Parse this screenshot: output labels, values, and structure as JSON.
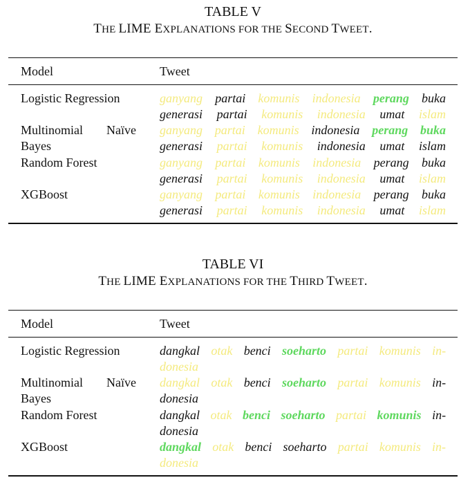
{
  "tables": [
    {
      "label": "TABLE V",
      "caption_parts": [
        {
          "t": "T",
          "sc": false
        },
        {
          "t": "HE ",
          "sc": true
        },
        {
          "t": "LIME E",
          "sc": false
        },
        {
          "t": "XPLANATIONS FOR THE ",
          "sc": true
        },
        {
          "t": "S",
          "sc": false
        },
        {
          "t": "ECOND ",
          "sc": true
        },
        {
          "t": "T",
          "sc": false
        },
        {
          "t": "WEET",
          "sc": true
        },
        {
          "t": ".",
          "sc": false
        }
      ],
      "headers": {
        "model": "Model",
        "tweet": "Tweet"
      },
      "rows": [
        {
          "model": "Logistic Regression",
          "words": [
            [
              "ganyang",
              "y"
            ],
            [
              "partai",
              "n"
            ],
            [
              "komunis",
              "y"
            ],
            [
              "indonesia",
              "y"
            ],
            [
              "perang",
              "g"
            ],
            [
              "buka",
              "n"
            ],
            [
              "generasi",
              "n"
            ],
            [
              "partai",
              "n"
            ],
            [
              "komunis",
              "y"
            ],
            [
              "indonesia",
              "y"
            ],
            [
              "umat",
              "n"
            ],
            [
              "islam",
              "y"
            ]
          ]
        },
        {
          "model": [
            "Multinomial Naïve",
            "Bayes"
          ],
          "words": [
            [
              "ganyang",
              "y"
            ],
            [
              "partai",
              "y"
            ],
            [
              "komunis",
              "y"
            ],
            [
              "indonesia",
              "n"
            ],
            [
              "perang",
              "g"
            ],
            [
              "buka",
              "g"
            ],
            [
              "generasi",
              "n"
            ],
            [
              "partai",
              "y"
            ],
            [
              "komunis",
              "y"
            ],
            [
              "indonesia",
              "n"
            ],
            [
              "umat",
              "n"
            ],
            [
              "islam",
              "n"
            ]
          ]
        },
        {
          "model": "Random Forest",
          "words": [
            [
              "ganyang",
              "y"
            ],
            [
              "partai",
              "y"
            ],
            [
              "komunis",
              "y"
            ],
            [
              "indonesia",
              "y"
            ],
            [
              "perang",
              "n"
            ],
            [
              "buka",
              "n"
            ],
            [
              "generasi",
              "n"
            ],
            [
              "partai",
              "y"
            ],
            [
              "komunis",
              "y"
            ],
            [
              "indonesia",
              "y"
            ],
            [
              "umat",
              "n"
            ],
            [
              "islam",
              "y"
            ]
          ]
        },
        {
          "model": "XGBoost",
          "words": [
            [
              "ganyang",
              "y"
            ],
            [
              "partai",
              "y"
            ],
            [
              "komunis",
              "y"
            ],
            [
              "indonesia",
              "y"
            ],
            [
              "perang",
              "n"
            ],
            [
              "buka",
              "n"
            ],
            [
              "generasi",
              "n"
            ],
            [
              "partai",
              "y"
            ],
            [
              "komunis",
              "y"
            ],
            [
              "indonesia",
              "y"
            ],
            [
              "umat",
              "n"
            ],
            [
              "islam",
              "y"
            ]
          ]
        }
      ]
    },
    {
      "label": "TABLE VI",
      "caption_parts": [
        {
          "t": "T",
          "sc": false
        },
        {
          "t": "HE ",
          "sc": true
        },
        {
          "t": "LIME E",
          "sc": false
        },
        {
          "t": "XPLANATIONS FOR THE ",
          "sc": true
        },
        {
          "t": "T",
          "sc": false
        },
        {
          "t": "HIRD ",
          "sc": true
        },
        {
          "t": "T",
          "sc": false
        },
        {
          "t": "WEET",
          "sc": true
        },
        {
          "t": ".",
          "sc": false
        }
      ],
      "headers": {
        "model": "Model",
        "tweet": "Tweet"
      },
      "rows": [
        {
          "model": "Logistic Regression",
          "words": [
            [
              "dangkal",
              "n"
            ],
            [
              "otak",
              "y"
            ],
            [
              "benci",
              "n"
            ],
            [
              "soeharto",
              "g"
            ],
            [
              "partai",
              "y"
            ],
            [
              "komunis",
              "y"
            ],
            [
              "in-",
              "y"
            ],
            [
              "donesia",
              "y"
            ]
          ]
        },
        {
          "model": [
            "Multinomial Naïve",
            "Bayes"
          ],
          "words": [
            [
              "dangkal",
              "y"
            ],
            [
              "otak",
              "y"
            ],
            [
              "benci",
              "n"
            ],
            [
              "soeharto",
              "g"
            ],
            [
              "partai",
              "y"
            ],
            [
              "komunis",
              "y"
            ],
            [
              "in-",
              "n"
            ],
            [
              "donesia",
              "n"
            ]
          ]
        },
        {
          "model": "Random Forest",
          "words": [
            [
              "dangkal",
              "n"
            ],
            [
              "otak",
              "y"
            ],
            [
              "benci",
              "g"
            ],
            [
              "soeharto",
              "g"
            ],
            [
              "partai",
              "y"
            ],
            [
              "komunis",
              "g"
            ],
            [
              "in-",
              "n"
            ],
            [
              "donesia",
              "n"
            ]
          ]
        },
        {
          "model": "XGBoost",
          "words": [
            [
              "dangkal",
              "g"
            ],
            [
              "otak",
              "y"
            ],
            [
              "benci",
              "n"
            ],
            [
              "soeharto",
              "n"
            ],
            [
              "partai",
              "y"
            ],
            [
              "komunis",
              "y"
            ],
            [
              "in-",
              "y"
            ],
            [
              "donesia",
              "y"
            ]
          ]
        }
      ]
    }
  ],
  "highlight_colors": {
    "y": "#f4ea7e",
    "g": "#5ed85e",
    "n": "#111111"
  }
}
